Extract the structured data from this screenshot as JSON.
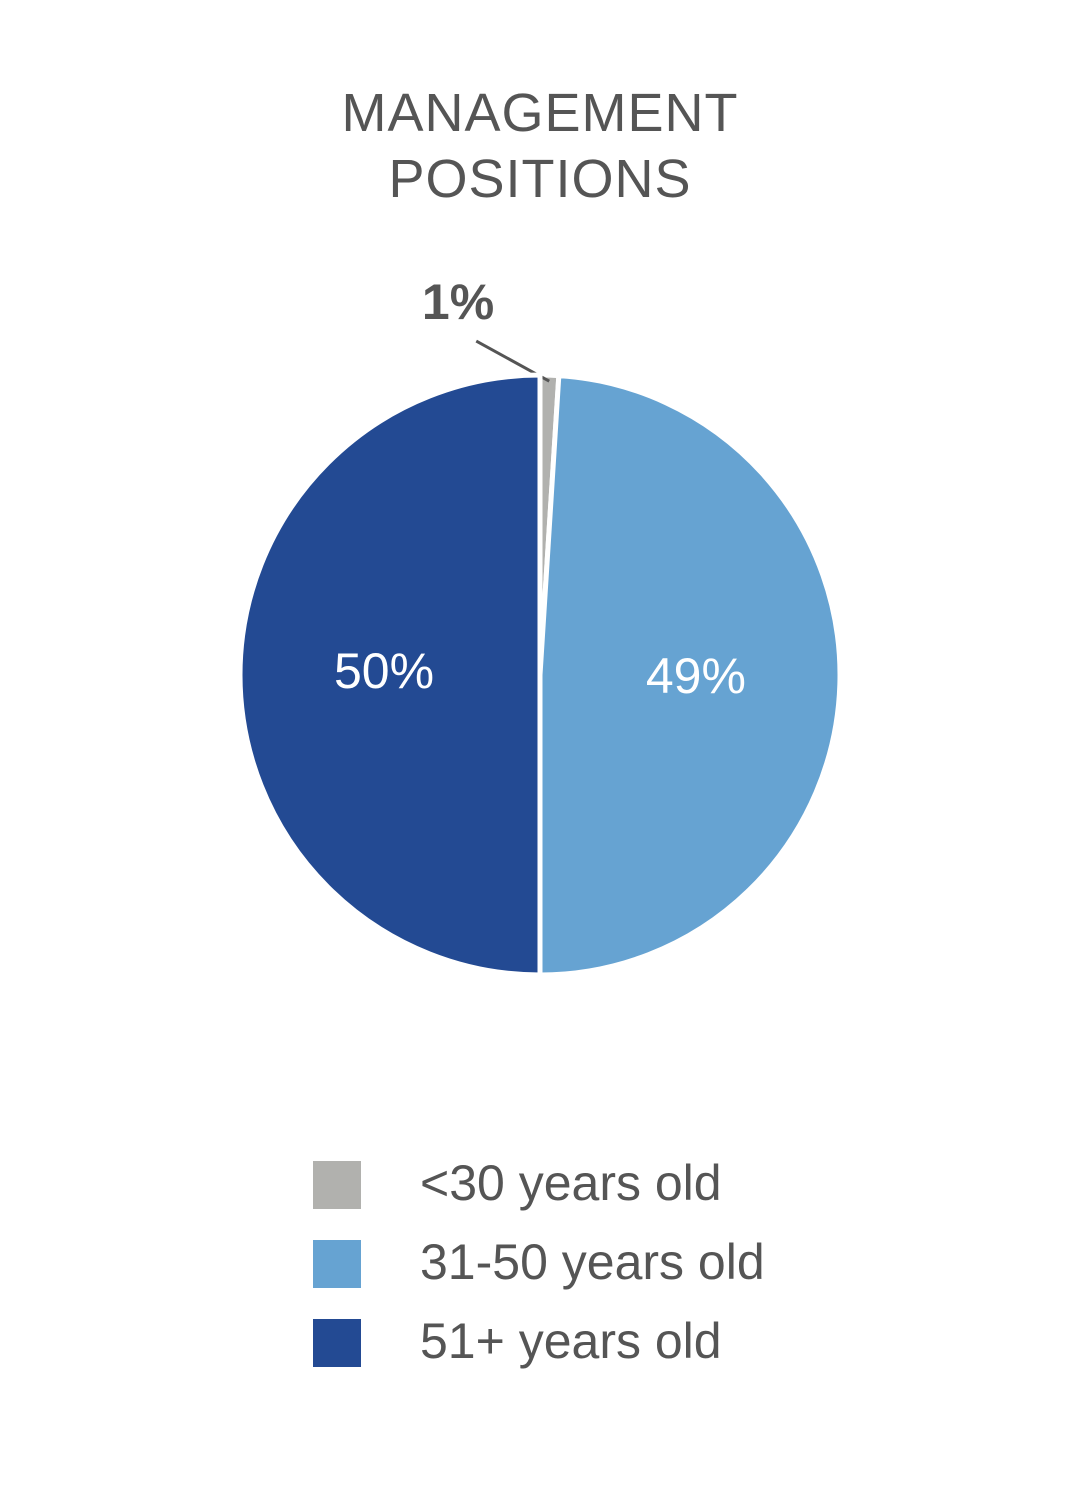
{
  "chart_data": {
    "type": "pie",
    "title": "MANAGEMENT POSITIONS",
    "categories": [
      "<30 years old",
      "31-50 years old",
      "51+ years old"
    ],
    "values": [
      1,
      49,
      50
    ],
    "value_labels": [
      "1%",
      "49%",
      "50%"
    ],
    "colors": [
      "#b1b1ae",
      "#66a3d2",
      "#234a93"
    ],
    "legend": "bottom"
  }
}
